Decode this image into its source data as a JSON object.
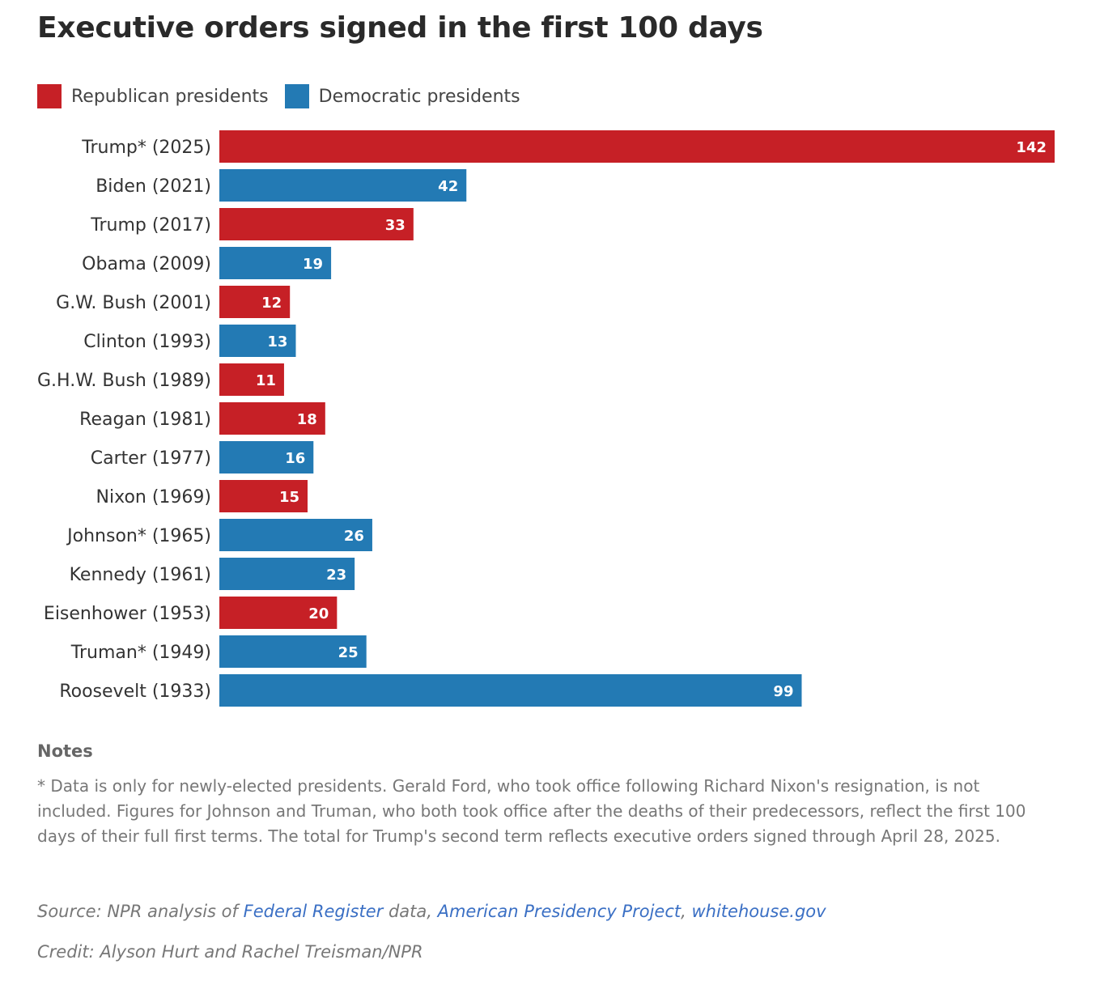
{
  "chart_data": {
    "type": "bar",
    "orientation": "horizontal",
    "title": "Executive orders signed in the first 100 days",
    "legend": [
      {
        "label": "Republican presidents",
        "color": "#c62026"
      },
      {
        "label": "Democratic presidents",
        "color": "#237ab4"
      }
    ],
    "categories": [
      "Trump* (2025)",
      "Biden (2021)",
      "Trump (2017)",
      "Obama (2009)",
      "G.W. Bush (2001)",
      "Clinton (1993)",
      "G.H.W. Bush (1989)",
      "Reagan (1981)",
      "Carter (1977)",
      "Nixon (1969)",
      "Johnson* (1965)",
      "Kennedy (1961)",
      "Eisenhower (1953)",
      "Truman* (1949)",
      "Roosevelt (1933)"
    ],
    "values": [
      142,
      42,
      33,
      19,
      12,
      13,
      11,
      18,
      16,
      15,
      26,
      23,
      20,
      25,
      99
    ],
    "party": [
      "Republican",
      "Democratic",
      "Republican",
      "Democratic",
      "Republican",
      "Democratic",
      "Republican",
      "Republican",
      "Democratic",
      "Republican",
      "Democratic",
      "Democratic",
      "Republican",
      "Democratic",
      "Democratic"
    ],
    "xlim": [
      0,
      142
    ],
    "grid": false
  },
  "notes": {
    "title": "Notes",
    "text": "* Data is only for newly-elected presidents. Gerald Ford, who took office following Richard Nixon's resignation, is not included. Figures for Johnson and Truman, who both took office after the deaths of their predecessors, reflect the first 100 days of their full first terms. The total for Trump's second term reflects executive orders signed through April 28, 2025."
  },
  "source": {
    "prefix": "Source: NPR analysis of ",
    "link1": "Federal Register",
    "middle": " data, ",
    "link2": "American Presidency Project",
    "sep": ", ",
    "link3": "whitehouse.gov"
  },
  "credit": "Credit: Alyson Hurt and Rachel Treisman/NPR"
}
